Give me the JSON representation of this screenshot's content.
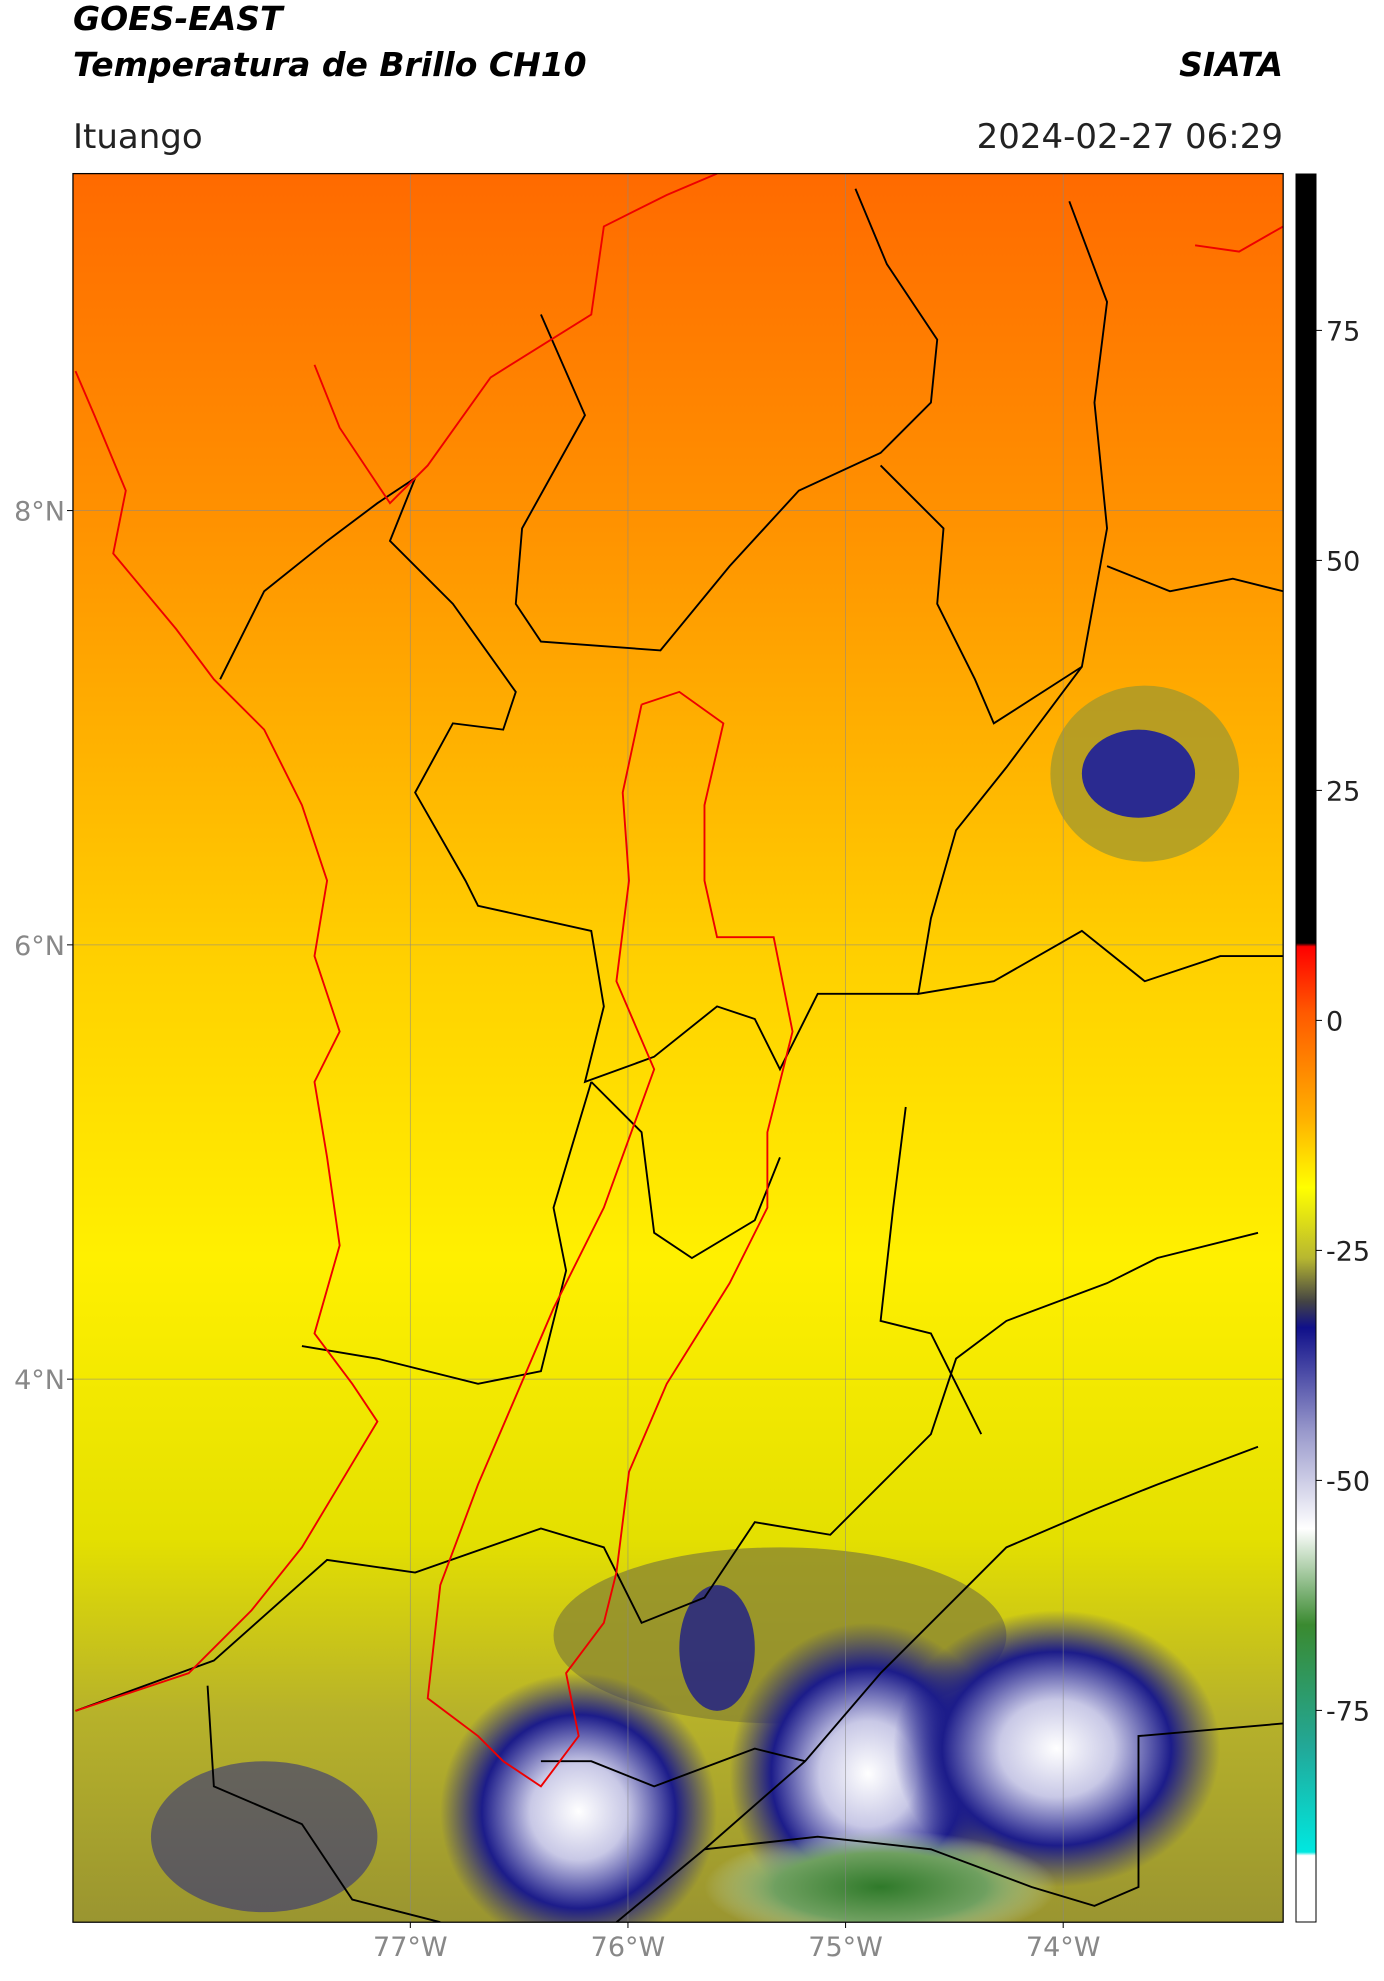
{
  "header": {
    "title": "GOES-EAST",
    "subtitle": "Temperatura de Brillo CH10",
    "org": "SIATA",
    "location": "Ituango",
    "datetime": "2024-02-27 06:29"
  },
  "map": {
    "lonlim": [
      -78.55,
      -72.99
    ],
    "latlim": [
      1.5,
      9.55
    ],
    "lonticks": [
      {
        "value": -77,
        "label": "77°W"
      },
      {
        "value": -76,
        "label": "76°W"
      },
      {
        "value": -75,
        "label": "75°W"
      },
      {
        "value": -74,
        "label": "74°W"
      }
    ],
    "latticks": [
      {
        "value": 8,
        "label": "8°N"
      },
      {
        "value": 6,
        "label": "6°N"
      },
      {
        "value": 4,
        "label": "4°N"
      }
    ]
  },
  "colorbar": {
    "lim": [
      -98,
      92
    ],
    "ticks": [
      -75,
      -50,
      -25,
      0,
      25,
      50,
      75
    ]
  }
}
